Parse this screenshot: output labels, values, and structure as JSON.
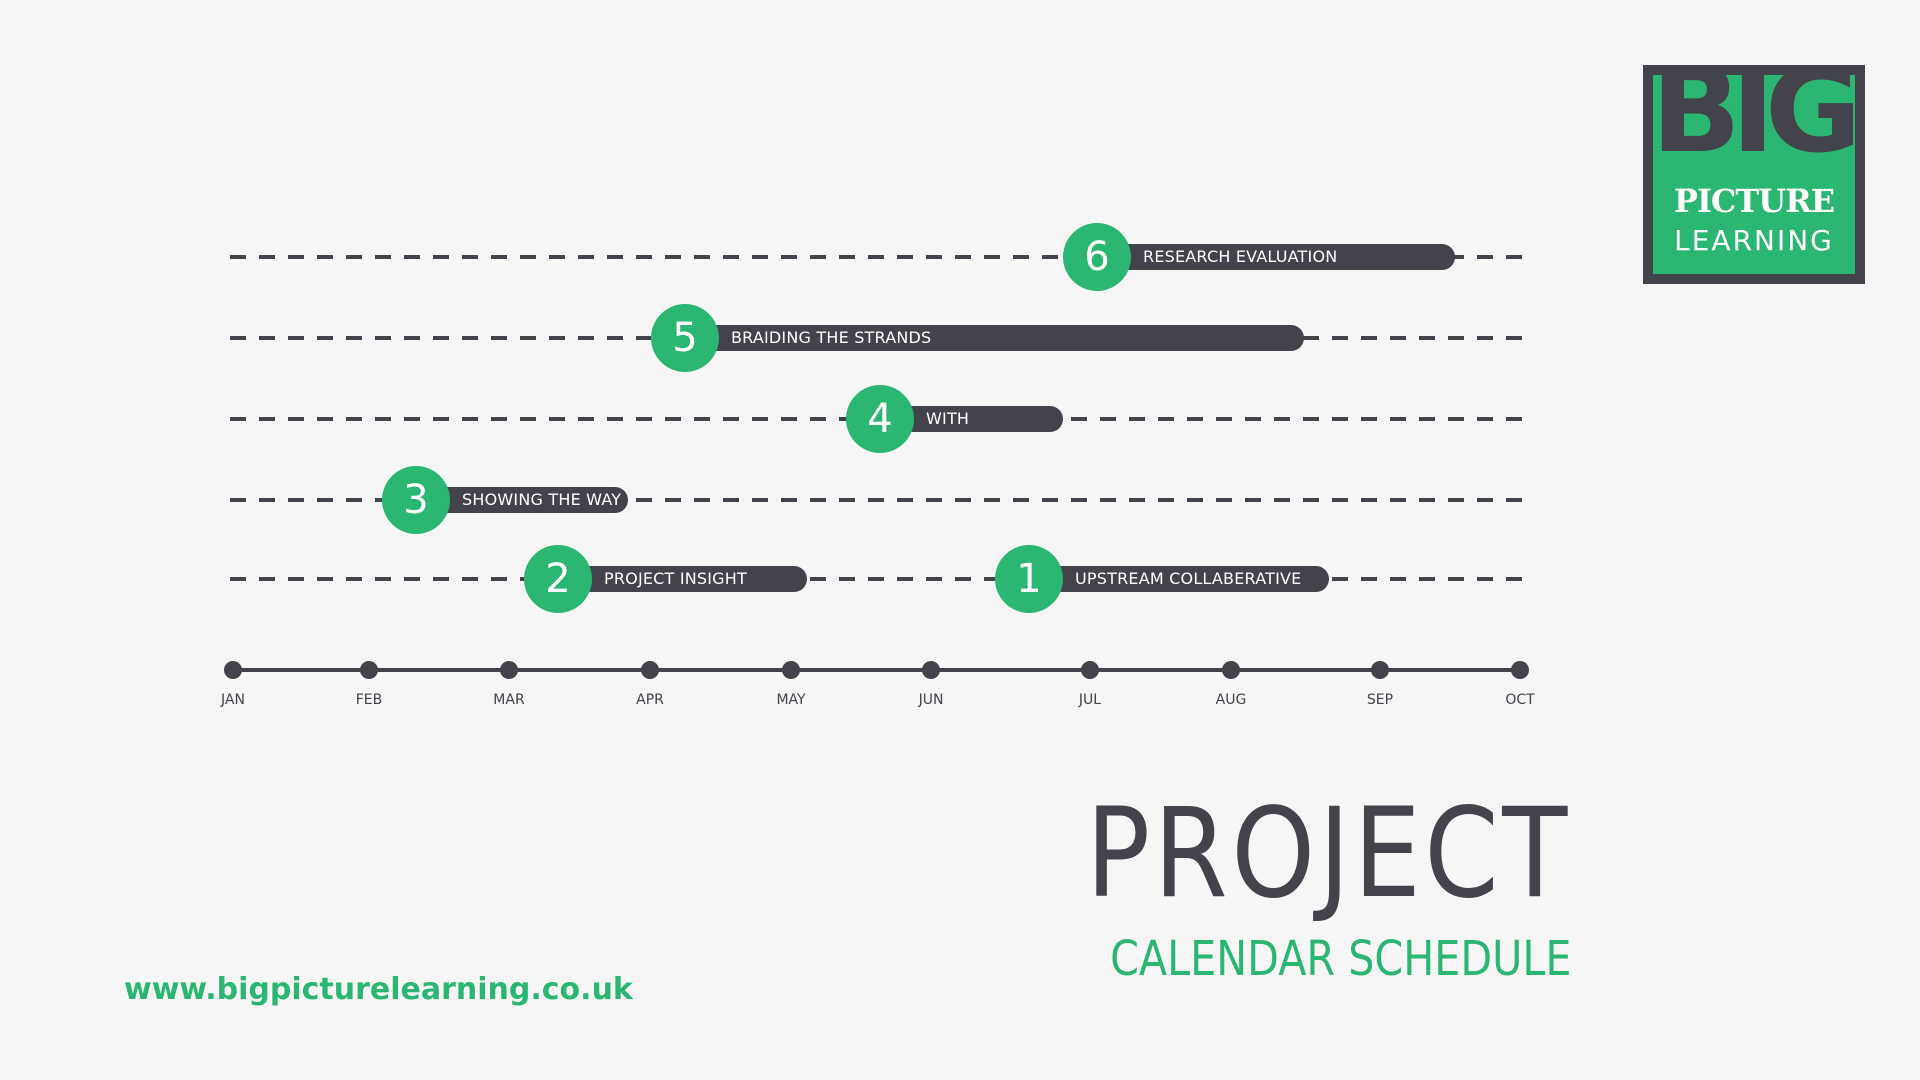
{
  "logo": {
    "big": "BIG",
    "picture": "PICTURE",
    "learning": "LEARNING"
  },
  "timeline": {
    "months": [
      "JAN",
      "FEB",
      "MAR",
      "APR",
      "MAY",
      "JUN",
      "JUL",
      "AUG",
      "SEP",
      "OCT"
    ],
    "tasks": [
      {
        "number": "1",
        "label": "UPSTREAM COLLABERATIVE"
      },
      {
        "number": "2",
        "label": "PROJECT INSIGHT"
      },
      {
        "number": "3",
        "label": "SHOWING THE WAY"
      },
      {
        "number": "4",
        "label": "WITH"
      },
      {
        "number": "5",
        "label": "BRAIDING THE STRANDS"
      },
      {
        "number": "6",
        "label": "RESEARCH EVALUATION"
      }
    ]
  },
  "title": "PROJECT",
  "subtitle": "CALENDAR SCHEDULE",
  "url": "www.bigpicturelearning.co.uk",
  "colors": {
    "accent": "#2bb673",
    "dark": "#43434b",
    "background": "#f6f6f6"
  }
}
